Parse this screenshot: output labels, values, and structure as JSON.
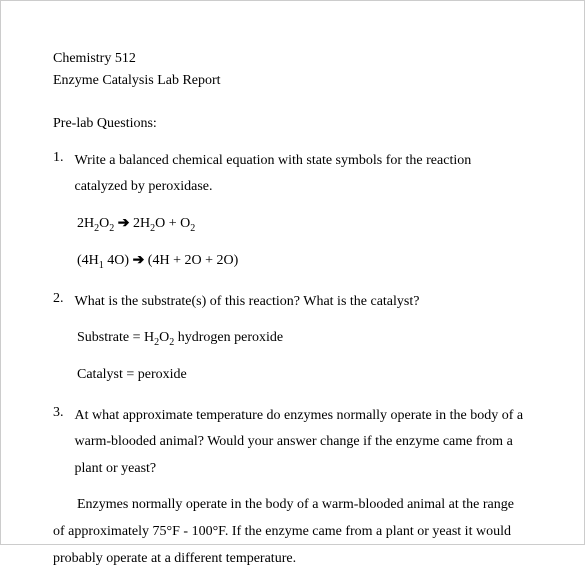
{
  "header": {
    "course": "Chemistry 512",
    "title": "Enzyme Catalysis Lab Report"
  },
  "section_heading": "Pre-lab Questions:",
  "q1": {
    "num": "1.",
    "text": "Write a balanced chemical equation with state symbols for the reaction catalyzed by peroxidase.",
    "eq1_left": "2H",
    "eq1_o2": "O",
    "eq1_arrow": "➔",
    "eq1_right_a": "2H",
    "eq1_right_b": "O + O",
    "eq2_left": "(4H",
    "eq2_sub1": "1",
    "eq2_mid": " 4O) ",
    "eq2_arrow": "➔",
    "eq2_right": " (4H + 2O + 2O)"
  },
  "q2": {
    "num": "2.",
    "text": "What is the substrate(s) of this reaction? What is the catalyst?",
    "ans1_a": "Substrate = H",
    "ans1_b": "O",
    "ans1_c": " hydrogen peroxide",
    "ans2": "Catalyst = peroxide"
  },
  "q3": {
    "num": "3.",
    "text": "At what approximate temperature do enzymes normally operate in the body of a warm-blooded animal? Would your answer change if the enzyme came from a plant or yeast?",
    "ans_p1": "Enzymes normally operate in the body of a warm-blooded animal at the range",
    "ans_p2": "of approximately 75°F - 100°F.  If the enzyme came from a plant or yeast it would",
    "ans_p3": "probably operate at a different temperature."
  }
}
